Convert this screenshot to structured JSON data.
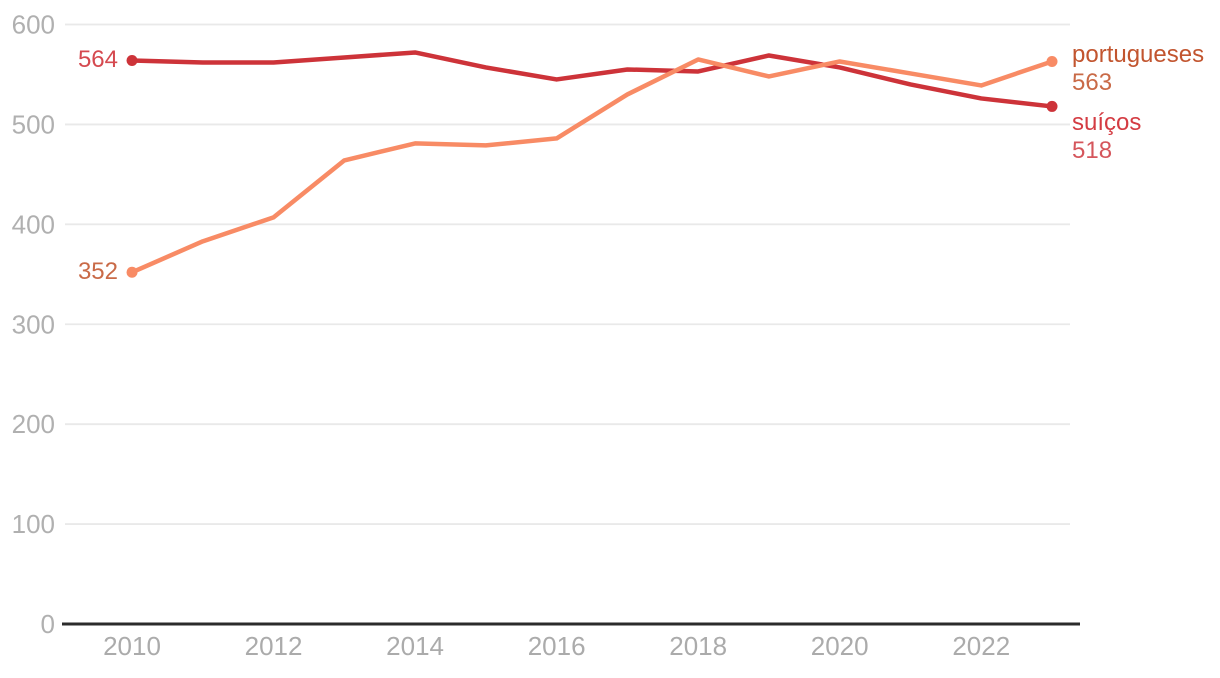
{
  "chart_data": {
    "type": "line",
    "x": [
      2010,
      2011,
      2012,
      2013,
      2014,
      2015,
      2016,
      2017,
      2018,
      2019,
      2020,
      2021,
      2022,
      2023
    ],
    "series": [
      {
        "name": "portugueses",
        "values": [
          352,
          383,
          407,
          464,
          481,
          479,
          486,
          530,
          565,
          548,
          563,
          551,
          539,
          563
        ],
        "start_label": "352",
        "end_label": "563",
        "color": "#f88b65"
      },
      {
        "name": "suíços",
        "values": [
          564,
          562,
          562,
          567,
          572,
          557,
          545,
          555,
          553,
          569,
          557,
          540,
          526,
          518
        ],
        "start_label": "564",
        "end_label": "518",
        "color": "#cd3339"
      }
    ],
    "y_ticks": [
      0,
      100,
      200,
      300,
      400,
      500,
      600
    ],
    "x_ticks": [
      2010,
      2012,
      2014,
      2016,
      2018,
      2020,
      2022
    ],
    "ylim": [
      0,
      600
    ],
    "title": "",
    "xlabel": "",
    "ylabel": "",
    "grid": "horizontal",
    "legend_position": "right-of-line-end",
    "colors": {
      "gridline": "#e9e9e9",
      "axis_line": "#2b2b2b",
      "tick_label": "#ababab",
      "portugueses_line": "#f88b65",
      "suicos_line": "#cd3339",
      "portugueses_name_text": "#c2552f",
      "portugueses_value_text": "#c96a47",
      "suicos_name_text": "#d43c43",
      "suicos_value_text": "#d5565c"
    }
  }
}
